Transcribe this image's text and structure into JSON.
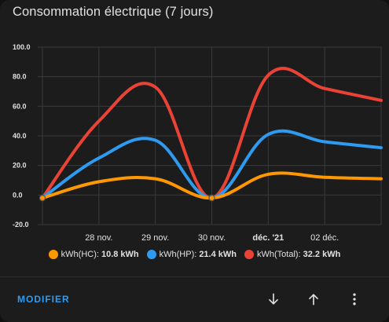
{
  "card": {
    "title": "Consommation électrique (7 jours)"
  },
  "chart_data": {
    "type": "line",
    "title": "Consommation électrique (7 jours)",
    "xlabel": "",
    "ylabel": "",
    "ylim": [
      -20,
      100
    ],
    "y_ticks": [
      "100.0",
      "80.0",
      "60.0",
      "40.0",
      "20.0",
      "0.0",
      "-20.0"
    ],
    "x_ticks": [
      {
        "label": "28 nov.",
        "major": false
      },
      {
        "label": "29 nov.",
        "major": false
      },
      {
        "label": "30 nov.",
        "major": false
      },
      {
        "label": "déc. '21",
        "major": true
      },
      {
        "label": "02 déc.",
        "major": false
      }
    ],
    "grid": true,
    "legend_position": "bottom",
    "x": [
      "27 nov.",
      "28 nov.",
      "29 nov.",
      "30 nov.",
      "01 déc.",
      "02 déc.",
      "03 déc."
    ],
    "series": [
      {
        "name": "kWh(Total)",
        "total": "32.2 kWh",
        "color": "#ea4335",
        "values": [
          -2,
          50,
          73,
          -2,
          81,
          72,
          64
        ]
      },
      {
        "name": "kWh(HP)",
        "total": "21.4 kWh",
        "color": "#2f9bf0",
        "values": [
          -2,
          25,
          37,
          -2,
          41,
          36,
          32
        ]
      },
      {
        "name": "kWh(HC)",
        "total": "10.8 kWh",
        "color": "#ff9800",
        "values": [
          -2,
          9,
          11,
          -2,
          14,
          12,
          11
        ]
      }
    ]
  },
  "legend": {
    "items": [
      {
        "label": "kWh(HC):",
        "value": "10.8 kWh",
        "color": "#ff9800"
      },
      {
        "label": "kWh(HP):",
        "value": "21.4 kWh",
        "color": "#2f9bf0"
      },
      {
        "label": "kWh(Total):",
        "value": "32.2 kWh",
        "color": "#ea4335"
      }
    ]
  },
  "actions": {
    "edit_label": "MODIFIER",
    "down_icon": "arrow-down-icon",
    "up_icon": "arrow-up-icon",
    "menu_icon": "more-vertical-icon"
  }
}
